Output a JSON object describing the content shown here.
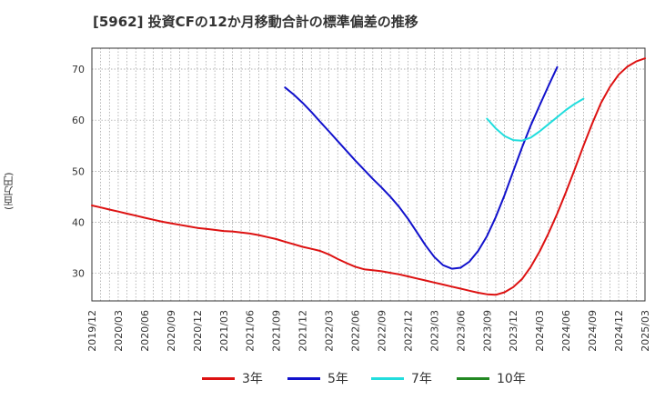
{
  "chart_data": {
    "type": "line",
    "title": "[5962]  投資CFの12か月移動合計の標準偏差の推移",
    "ylabel": "(百万円)",
    "xlabel": "",
    "ylim": [
      24.6,
      74.1
    ],
    "yticks": [
      30,
      40,
      50,
      60,
      70
    ],
    "xlim": [
      "2019-12",
      "2025-03"
    ],
    "xticks": [
      "2019/12",
      "2020/03",
      "2020/06",
      "2020/09",
      "2020/12",
      "2021/03",
      "2021/06",
      "2021/09",
      "2021/12",
      "2022/03",
      "2022/06",
      "2022/09",
      "2022/12",
      "2023/03",
      "2023/06",
      "2023/09",
      "2023/12",
      "2024/03",
      "2024/06",
      "2024/09",
      "2024/12",
      "2025/03"
    ],
    "grid": true,
    "legend_position": "bottom",
    "series": [
      {
        "name": "3年",
        "color": "#dd1111",
        "points": [
          [
            "2019-12",
            43.3
          ],
          [
            "2020-01",
            42.9
          ],
          [
            "2020-02",
            42.5
          ],
          [
            "2020-03",
            42.1
          ],
          [
            "2020-04",
            41.7
          ],
          [
            "2020-05",
            41.3
          ],
          [
            "2020-06",
            40.9
          ],
          [
            "2020-07",
            40.5
          ],
          [
            "2020-08",
            40.1
          ],
          [
            "2020-09",
            39.8
          ],
          [
            "2020-10",
            39.5
          ],
          [
            "2020-11",
            39.2
          ],
          [
            "2020-12",
            38.9
          ],
          [
            "2021-01",
            38.7
          ],
          [
            "2021-02",
            38.5
          ],
          [
            "2021-03",
            38.3
          ],
          [
            "2021-04",
            38.2
          ],
          [
            "2021-05",
            38.0
          ],
          [
            "2021-06",
            37.8
          ],
          [
            "2021-07",
            37.5
          ],
          [
            "2021-08",
            37.1
          ],
          [
            "2021-09",
            36.7
          ],
          [
            "2021-10",
            36.2
          ],
          [
            "2021-11",
            35.7
          ],
          [
            "2021-12",
            35.2
          ],
          [
            "2022-01",
            34.8
          ],
          [
            "2022-02",
            34.4
          ],
          [
            "2022-03",
            33.7
          ],
          [
            "2022-04",
            32.8
          ],
          [
            "2022-05",
            32.0
          ],
          [
            "2022-06",
            31.3
          ],
          [
            "2022-07",
            30.8
          ],
          [
            "2022-08",
            30.6
          ],
          [
            "2022-09",
            30.4
          ],
          [
            "2022-10",
            30.1
          ],
          [
            "2022-11",
            29.8
          ],
          [
            "2022-12",
            29.4
          ],
          [
            "2023-01",
            29.0
          ],
          [
            "2023-02",
            28.6
          ],
          [
            "2023-03",
            28.2
          ],
          [
            "2023-04",
            27.8
          ],
          [
            "2023-05",
            27.4
          ],
          [
            "2023-06",
            27.0
          ],
          [
            "2023-07",
            26.6
          ],
          [
            "2023-08",
            26.2
          ],
          [
            "2023-09",
            25.9
          ],
          [
            "2023-10",
            25.8
          ],
          [
            "2023-11",
            26.3
          ],
          [
            "2023-12",
            27.3
          ],
          [
            "2024-01",
            28.9
          ],
          [
            "2024-02",
            31.3
          ],
          [
            "2024-03",
            34.3
          ],
          [
            "2024-04",
            37.8
          ],
          [
            "2024-05",
            41.7
          ],
          [
            "2024-06",
            45.9
          ],
          [
            "2024-07",
            50.4
          ],
          [
            "2024-08",
            55.0
          ],
          [
            "2024-09",
            59.4
          ],
          [
            "2024-10",
            63.4
          ],
          [
            "2024-11",
            66.5
          ],
          [
            "2024-12",
            68.9
          ],
          [
            "2025-01",
            70.5
          ],
          [
            "2025-02",
            71.5
          ],
          [
            "2025-03",
            72.1
          ]
        ]
      },
      {
        "name": "5年",
        "color": "#1111cc",
        "points": [
          [
            "2021-10",
            66.4
          ],
          [
            "2021-11",
            65.0
          ],
          [
            "2021-12",
            63.4
          ],
          [
            "2022-01",
            61.6
          ],
          [
            "2022-02",
            59.7
          ],
          [
            "2022-03",
            57.8
          ],
          [
            "2022-04",
            55.9
          ],
          [
            "2022-05",
            54.0
          ],
          [
            "2022-06",
            52.1
          ],
          [
            "2022-07",
            50.3
          ],
          [
            "2022-08",
            48.5
          ],
          [
            "2022-09",
            46.8
          ],
          [
            "2022-10",
            45.0
          ],
          [
            "2022-11",
            43.0
          ],
          [
            "2022-12",
            40.7
          ],
          [
            "2023-01",
            38.1
          ],
          [
            "2023-02",
            35.5
          ],
          [
            "2023-03",
            33.2
          ],
          [
            "2023-04",
            31.6
          ],
          [
            "2023-05",
            30.9
          ],
          [
            "2023-06",
            31.1
          ],
          [
            "2023-07",
            32.3
          ],
          [
            "2023-08",
            34.4
          ],
          [
            "2023-09",
            37.3
          ],
          [
            "2023-10",
            41.0
          ],
          [
            "2023-11",
            45.3
          ],
          [
            "2023-12",
            50.0
          ],
          [
            "2024-01",
            54.7
          ],
          [
            "2024-02",
            59.0
          ],
          [
            "2024-03",
            62.9
          ],
          [
            "2024-04",
            66.7
          ],
          [
            "2024-05",
            70.4
          ]
        ]
      },
      {
        "name": "7年",
        "color": "#22dddd",
        "points": [
          [
            "2023-09",
            60.3
          ],
          [
            "2023-10",
            58.4
          ],
          [
            "2023-11",
            56.9
          ],
          [
            "2023-12",
            56.1
          ],
          [
            "2024-01",
            56.0
          ],
          [
            "2024-02",
            56.6
          ],
          [
            "2024-03",
            57.8
          ],
          [
            "2024-04",
            59.2
          ],
          [
            "2024-05",
            60.6
          ],
          [
            "2024-06",
            62.0
          ],
          [
            "2024-07",
            63.2
          ],
          [
            "2024-08",
            64.2
          ]
        ]
      },
      {
        "name": "10年",
        "color": "#228822",
        "points": []
      }
    ]
  }
}
